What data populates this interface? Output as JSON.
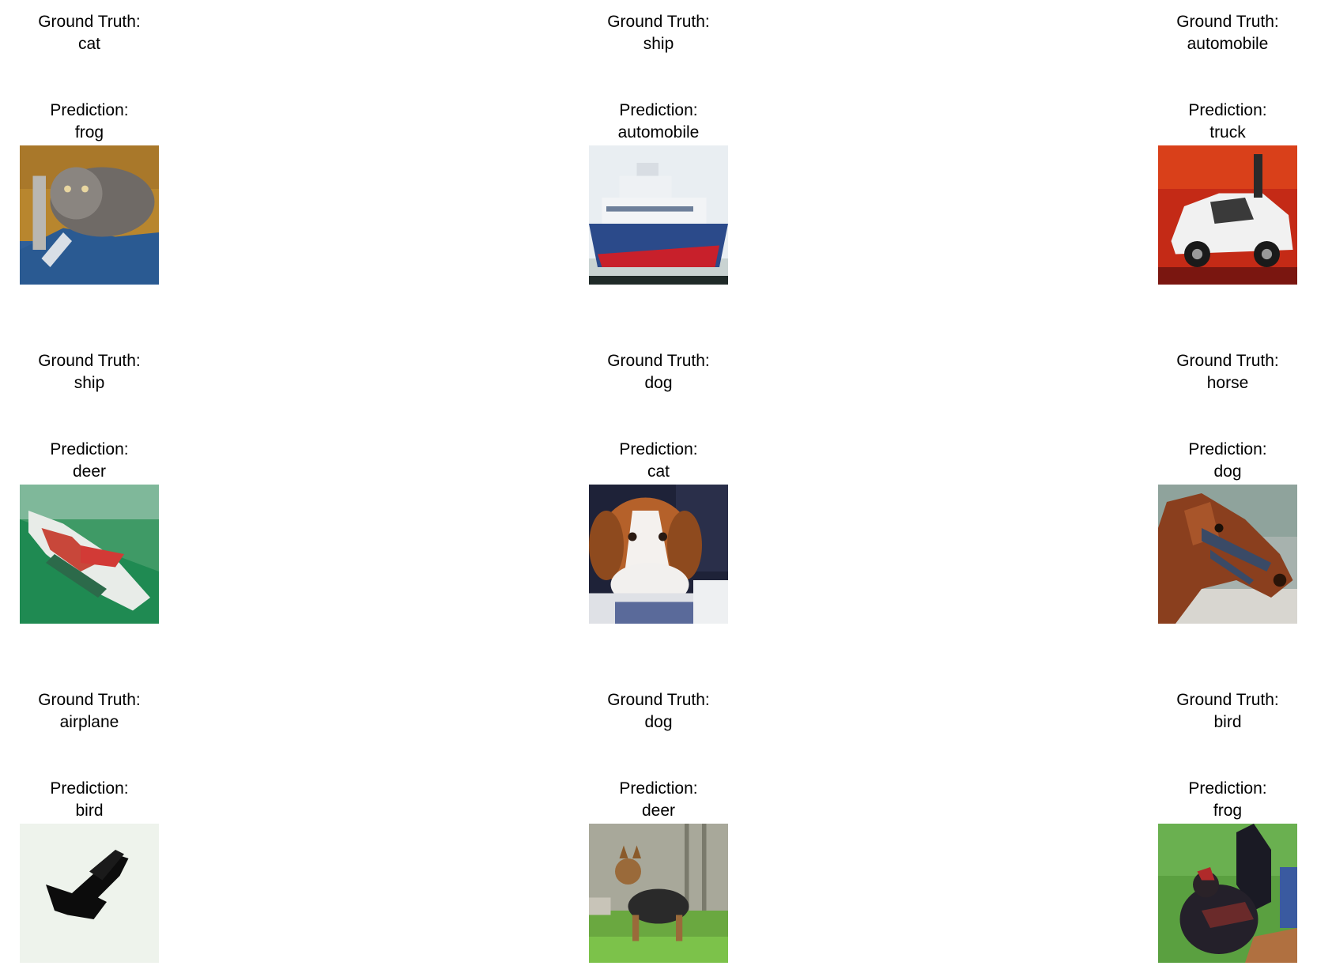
{
  "gt_prefix": "Ground Truth:",
  "pred_prefix": "Prediction:",
  "samples": [
    {
      "ground_truth": "cat",
      "prediction": "frog",
      "image": "cat-on-blue-cushion"
    },
    {
      "ground_truth": "ship",
      "prediction": "automobile",
      "image": "white-blue-ship"
    },
    {
      "ground_truth": "automobile",
      "prediction": "truck",
      "image": "white-car-red-background"
    },
    {
      "ground_truth": "ship",
      "prediction": "deer",
      "image": "ship-on-green-water"
    },
    {
      "ground_truth": "dog",
      "prediction": "cat",
      "image": "brown-white-puppy"
    },
    {
      "ground_truth": "horse",
      "prediction": "dog",
      "image": "horse-head-with-bridle"
    },
    {
      "ground_truth": "airplane",
      "prediction": "bird",
      "image": "black-plane-silhouette"
    },
    {
      "ground_truth": "dog",
      "prediction": "deer",
      "image": "small-dog-on-grass"
    },
    {
      "ground_truth": "bird",
      "prediction": "frog",
      "image": "dark-bird-on-grass"
    }
  ]
}
